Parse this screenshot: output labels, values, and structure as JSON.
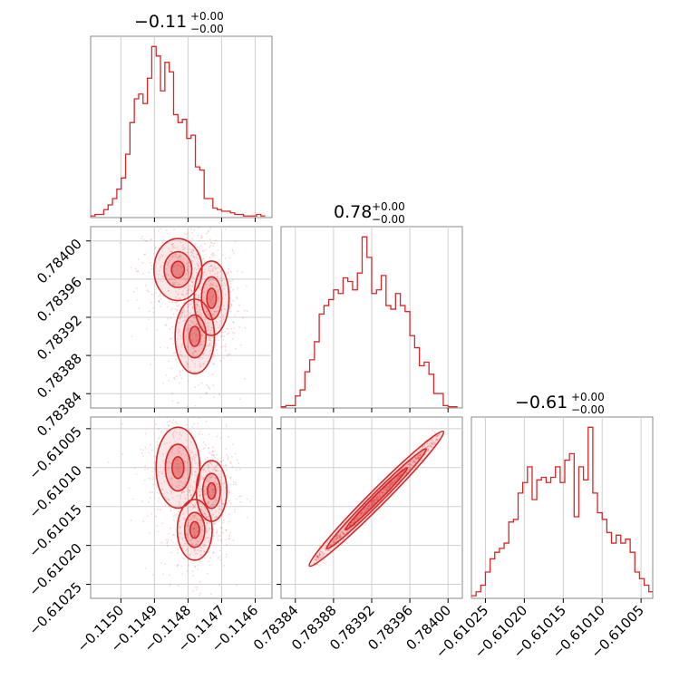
{
  "chart_data": [
    {
      "type": "histogram",
      "panel": "diag-0",
      "title": {
        "value": "−0.11",
        "plus": "+0.00",
        "minus": "−0.00"
      },
      "x_ticks": [
        "−0.1150",
        "−0.1149",
        "−0.1148",
        "−0.1147",
        "−0.1146"
      ],
      "x_tick_values": [
        -0.115,
        -0.1149,
        -0.1148,
        -0.1147,
        -0.1146
      ],
      "xlim": [
        -0.11509,
        -0.11455
      ],
      "bins": [
        -0.11509,
        -0.115077,
        -0.115064,
        -0.115051,
        -0.115038,
        -0.115025,
        -0.115012,
        -0.114999,
        -0.114986,
        -0.114973,
        -0.11496,
        -0.114947,
        -0.114934,
        -0.114921,
        -0.114908,
        -0.114895,
        -0.114882,
        -0.114869,
        -0.114856,
        -0.114843,
        -0.11483,
        -0.114817,
        -0.114804,
        -0.114791,
        -0.114778,
        -0.114765,
        -0.114752,
        -0.114739,
        -0.114726,
        -0.114713,
        -0.1147,
        -0.114687,
        -0.114674,
        -0.114661,
        -0.114648,
        -0.114635,
        -0.114622,
        -0.114609,
        -0.114596,
        -0.114583,
        -0.11457
      ],
      "counts": [
        1,
        2,
        2,
        5,
        8,
        12,
        18,
        25,
        40,
        60,
        75,
        78,
        72,
        88,
        108,
        102,
        80,
        98,
        92,
        65,
        60,
        62,
        50,
        52,
        32,
        30,
        12,
        12,
        6,
        5,
        4,
        4,
        3,
        2,
        2,
        1,
        1,
        1,
        2,
        1
      ],
      "grid": true,
      "color": "#d62728"
    },
    {
      "type": "histogram",
      "panel": "diag-1",
      "title": {
        "value": "0.78",
        "plus": "+0.00",
        "minus": "−0.00"
      },
      "x_ticks": [
        "0.78384",
        "0.78388",
        "0.78392",
        "0.78396",
        "0.78400"
      ],
      "x_tick_values": [
        0.78384,
        0.78388,
        0.78392,
        0.78396,
        0.784
      ],
      "xlim": [
        0.783825,
        0.784015
      ],
      "bins": [
        0.783825,
        0.78383,
        0.783835,
        0.78384,
        0.783845,
        0.78385,
        0.783855,
        0.78386,
        0.783865,
        0.78387,
        0.783875,
        0.78388,
        0.783885,
        0.78389,
        0.783895,
        0.7839,
        0.783905,
        0.78391,
        0.783915,
        0.78392,
        0.783925,
        0.78393,
        0.783935,
        0.78394,
        0.783945,
        0.78395,
        0.783955,
        0.78396,
        0.783965,
        0.78397,
        0.783975,
        0.78398,
        0.783985,
        0.78399,
        0.783995,
        0.784,
        0.784005,
        0.78401
      ],
      "counts": [
        1,
        2,
        2,
        10,
        15,
        30,
        40,
        55,
        78,
        85,
        90,
        98,
        95,
        108,
        105,
        98,
        112,
        142,
        125,
        95,
        98,
        110,
        85,
        82,
        95,
        85,
        80,
        60,
        50,
        35,
        38,
        28,
        12,
        12,
        2,
        1,
        1
      ],
      "grid": true,
      "color": "#d62728"
    },
    {
      "type": "histogram",
      "panel": "diag-2",
      "title": {
        "value": "−0.61",
        "plus": "+0.00",
        "minus": "−0.00"
      },
      "x_ticks": [
        "−0.61025",
        "−0.61020",
        "−0.61015",
        "−0.61010",
        "−0.61005"
      ],
      "x_tick_values": [
        -0.61025,
        -0.6102,
        -0.61015,
        -0.6101,
        -0.61005
      ],
      "xlim": [
        -0.610268,
        -0.610035
      ],
      "bins": [
        -0.610268,
        -0.610262,
        -0.610256,
        -0.61025,
        -0.610244,
        -0.610238,
        -0.610232,
        -0.610226,
        -0.61022,
        -0.610214,
        -0.610208,
        -0.610202,
        -0.610196,
        -0.61019,
        -0.610184,
        -0.610178,
        -0.610172,
        -0.610166,
        -0.61016,
        -0.610154,
        -0.610148,
        -0.610142,
        -0.610136,
        -0.61013,
        -0.610124,
        -0.610118,
        -0.610112,
        -0.610106,
        -0.6101,
        -0.610094,
        -0.610088,
        -0.610082,
        -0.610076,
        -0.61007,
        -0.610064,
        -0.610058,
        -0.610052,
        -0.610046,
        -0.61004,
        -0.610035
      ],
      "counts": [
        2,
        5,
        10,
        20,
        30,
        35,
        38,
        42,
        58,
        60,
        80,
        88,
        100,
        75,
        90,
        92,
        88,
        92,
        100,
        88,
        105,
        110,
        62,
        100,
        90,
        130,
        80,
        65,
        60,
        50,
        42,
        48,
        42,
        45,
        35,
        20,
        15,
        10,
        5
      ],
      "grid": true,
      "color": "#d62728"
    },
    {
      "type": "scatter",
      "panel": "corner-1-0",
      "x_param": 0,
      "y_param": 1,
      "y_ticks": [
        "0.78400",
        "0.78396",
        "0.78392",
        "0.78388",
        "0.78384"
      ],
      "y_tick_values": [
        0.784,
        0.78396,
        0.78392,
        0.78388,
        0.78384
      ],
      "xlim": [
        -0.11509,
        -0.11455
      ],
      "ylim": [
        0.783825,
        0.784015
      ],
      "grid": true,
      "color": "#d62728",
      "regions": [
        {
          "x": -0.11483,
          "y": 0.78397,
          "rx": 5.5e-05,
          "ry": 2.5e-05
        },
        {
          "x": -0.11478,
          "y": 0.7839,
          "rx": 4.5e-05,
          "ry": 3e-05
        },
        {
          "x": -0.11473,
          "y": 0.78394,
          "rx": 4e-05,
          "ry": 3e-05
        }
      ]
    },
    {
      "type": "scatter",
      "panel": "corner-2-0",
      "x_param": 0,
      "y_param": 2,
      "y_ticks": [
        "−0.61005",
        "−0.61010",
        "−0.61015",
        "−0.61020",
        "−0.61025"
      ],
      "y_tick_values": [
        -0.61005,
        -0.6101,
        -0.61015,
        -0.6102,
        -0.61025
      ],
      "xlim": [
        -0.11509,
        -0.11455
      ],
      "ylim": [
        -0.610268,
        -0.610035
      ],
      "grid": true,
      "color": "#d62728",
      "regions": [
        {
          "x": -0.11483,
          "y": -0.6101,
          "rx": 5e-05,
          "ry": 4e-05
        },
        {
          "x": -0.11478,
          "y": -0.61018,
          "rx": 4e-05,
          "ry": 3e-05
        },
        {
          "x": -0.11473,
          "y": -0.61013,
          "rx": 3.5e-05,
          "ry": 3e-05
        }
      ]
    },
    {
      "type": "scatter",
      "panel": "corner-2-1",
      "x_param": 1,
      "y_param": 2,
      "xlim": [
        0.783825,
        0.784015
      ],
      "ylim": [
        -0.610268,
        -0.610035
      ],
      "grid": true,
      "color": "#d62728",
      "band": {
        "x0": 0.78386,
        "y0": -0.61022,
        "x1": 0.78399,
        "y1": -0.61006
      }
    }
  ]
}
